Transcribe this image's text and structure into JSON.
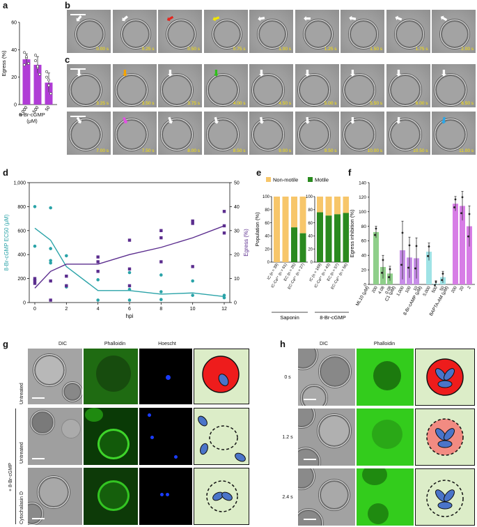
{
  "panels": {
    "a": "a",
    "b": "b",
    "c": "c",
    "d": "d",
    "e": "e",
    "f": "f",
    "g": "g",
    "h": "h"
  },
  "panel_a": {
    "ylabel": "Egress (%)",
    "yticks": [
      "0",
      "20",
      "40",
      "60"
    ],
    "categories": [
      "5,000",
      "500",
      "50"
    ],
    "xlabel_line1": "8-Br-cGMP",
    "xlabel_line2": "(μM)",
    "color": "#b03cd6"
  },
  "panel_b": {
    "timestamps": [
      "0.00 s",
      "0.25 s",
      "0.50 s",
      "0.75 s",
      "1.00 s",
      "1.25 s",
      "1.50 s",
      "1.75 s",
      "2.00 s"
    ],
    "arrow_colors": [
      "#ffffff",
      "#ffffff",
      "#e3261f",
      "#f2e600",
      "#ffffff",
      "#ffffff",
      "#ffffff",
      "#ffffff",
      "#ffffff"
    ]
  },
  "panel_c": {
    "row1": [
      "3.25 s",
      "3.50 s",
      "3.75 s",
      "4.00 s",
      "4.50 s",
      "5.00 s",
      "5.50 s",
      "6.00 s",
      "6.50 s"
    ],
    "row2": [
      "7.00 s",
      "7.50 s",
      "8.00 s",
      "8.50 s",
      "9.00 s",
      "9.50 s",
      "10.00 s",
      "10.50 s",
      "11.00 s"
    ],
    "row1_arrow_colors": [
      "#ffffff",
      "#f5a300",
      "#ffffff",
      "#2fbf1a",
      "#ffffff",
      "#ffffff",
      "#ffffff",
      "#ffffff",
      "#ffffff"
    ],
    "row2_arrow_colors": [
      "#ffffff",
      "#e64ee6",
      "#ffffff",
      "#ffffff",
      "#ffffff",
      "#ffffff",
      "#ffffff",
      "#ffffff",
      "#2aa7e8"
    ]
  },
  "chart_data": [
    {
      "type": "bar",
      "panel": "a",
      "categories": [
        "5,000",
        "500",
        "50"
      ],
      "values": [
        33,
        29,
        16
      ],
      "errors": [
        4,
        6,
        7
      ],
      "points": [
        [
          38,
          34,
          30,
          29,
          35
        ],
        [
          32,
          27,
          22,
          36,
          28
        ],
        [
          24,
          14,
          8,
          20,
          18
        ]
      ],
      "ylabel": "Egress (%)",
      "xlabel": "8-Br-cGMP (μM)",
      "ylim": [
        0,
        60
      ]
    },
    {
      "type": "line",
      "panel": "d",
      "xlabel": "hpi",
      "ylabel_left": "8-Br-cGMP EC50 (μM)",
      "ylabel_right": "Egress (%)",
      "xticks": [
        0,
        2,
        4,
        6,
        8,
        10,
        12
      ],
      "ylim_left": [
        0,
        1000
      ],
      "ylim_right": [
        0,
        50
      ],
      "yticks_left": [
        "0",
        "200",
        "400",
        "600",
        "800",
        "1,000"
      ],
      "yticks_right": [
        "0",
        "10",
        "20",
        "30",
        "40",
        "50"
      ],
      "series": [
        {
          "axis": "left",
          "color": "#2aa3a8",
          "line": [
            [
              0,
              620
            ],
            [
              1,
              520
            ],
            [
              2,
              300
            ],
            [
              4,
              100
            ],
            [
              6,
              100
            ],
            [
              8,
              70
            ],
            [
              10,
              80
            ],
            [
              12,
              50
            ]
          ],
          "points": [
            [
              0,
              800
            ],
            [
              0,
              470
            ],
            [
              0,
              190
            ],
            [
              1,
              790
            ],
            [
              1,
              450
            ],
            [
              1,
              350
            ],
            [
              1,
              330
            ],
            [
              2,
              390
            ],
            [
              2,
              140
            ],
            [
              2,
              130
            ],
            [
              4,
              190
            ],
            [
              4,
              20
            ],
            [
              6,
              250
            ],
            [
              6,
              110
            ],
            [
              6,
              20
            ],
            [
              8,
              230
            ],
            [
              8,
              90
            ],
            [
              8,
              25
            ],
            [
              10,
              180
            ],
            [
              10,
              60
            ],
            [
              12,
              60
            ],
            [
              12,
              40
            ]
          ]
        },
        {
          "axis": "right",
          "color": "#5b2d8e",
          "line": [
            [
              0,
              6
            ],
            [
              1,
              13
            ],
            [
              2,
              16
            ],
            [
              4,
              16
            ],
            [
              6,
              20
            ],
            [
              8,
              23
            ],
            [
              10,
              27
            ],
            [
              12,
              32
            ]
          ],
          "points": [
            [
              0,
              10
            ],
            [
              0,
              9
            ],
            [
              0,
              8
            ],
            [
              1,
              1
            ],
            [
              1,
              9
            ],
            [
              2,
              7
            ],
            [
              2,
              11
            ],
            [
              4,
              19
            ],
            [
              4,
              17
            ],
            [
              4,
              13
            ],
            [
              6,
              26
            ],
            [
              6,
              14
            ],
            [
              6,
              7
            ],
            [
              8,
              30
            ],
            [
              8,
              27
            ],
            [
              8,
              17
            ],
            [
              10,
              34
            ],
            [
              10,
              33
            ],
            [
              10,
              15
            ],
            [
              12,
              38
            ],
            [
              12,
              32
            ],
            [
              12,
              29
            ]
          ]
        }
      ]
    },
    {
      "type": "bar",
      "stacked": true,
      "panel": "e",
      "ylabel": "Population (%)",
      "ylim": [
        0,
        100
      ],
      "yticks": [
        "0",
        "20",
        "40",
        "60",
        "80",
        "100"
      ],
      "legend": [
        {
          "name": "Non-motile",
          "color": "#f7c66a"
        },
        {
          "name": "Motile",
          "color": "#2a8a1f"
        }
      ],
      "groups": [
        {
          "name": "Saponin",
          "categories": [
            "IC (n = 39)",
            "IC-Ca²⁺ (n = 61)",
            "EC (n = 25)",
            "EC-Ca²⁺ (n = 27)"
          ],
          "motile": [
            0,
            0,
            53,
            44
          ]
        },
        {
          "name": "8-Br-cGMP",
          "categories": [
            "IC (n = 169)",
            "IC-Ca²⁺ (n = 43)",
            "EC (n = 57)",
            "EC-Ca²⁺ (n = 56)"
          ],
          "motile": [
            76,
            71,
            73,
            75
          ]
        }
      ]
    },
    {
      "type": "bar",
      "panel": "f",
      "ylabel": "Egress inhibition (%)",
      "ylim": [
        0,
        140
      ],
      "yticks": [
        "0",
        "20",
        "40",
        "60",
        "80",
        "100",
        "120",
        "140"
      ],
      "groups": [
        {
          "name": "ML10 (μM)",
          "color": "#8fcf8a",
          "categories": [
            "200",
            "4.08",
            "0.08"
          ],
          "values": [
            72,
            24,
            15
          ],
          "errors": [
            8,
            16,
            10
          ]
        },
        {
          "name": "C1 (μM)",
          "color": "#c78ee8",
          "categories": [
            "1,000",
            "100",
            "10"
          ],
          "values": [
            47,
            37,
            36
          ],
          "errors": [
            40,
            28,
            28
          ]
        },
        {
          "name": "8-Br-cAMP (μM)",
          "color": "#9fe3e6",
          "categories": [
            "5,000",
            "500",
            "50"
          ],
          "values": [
            45,
            1,
            10
          ],
          "errors": [
            12,
            4,
            8
          ]
        },
        {
          "name": "BAPTA-AM (μM)",
          "color": "#d77de6",
          "categories": [
            "200",
            "20",
            "2"
          ],
          "values": [
            111,
            108,
            80
          ],
          "errors": [
            10,
            20,
            28
          ]
        }
      ]
    }
  ],
  "panel_g": {
    "col_headers": [
      "DIC",
      "Phalloidin",
      "Hoescht"
    ],
    "rows": [
      "Untreated",
      "Untreated",
      "Cytochalasin D"
    ],
    "group_label": "+ 8-Br-cGMP"
  },
  "panel_h": {
    "col_headers": [
      "DIC",
      "Phalloidin"
    ],
    "rows": [
      "0 s",
      "1.2 s",
      "2.4 s"
    ]
  }
}
